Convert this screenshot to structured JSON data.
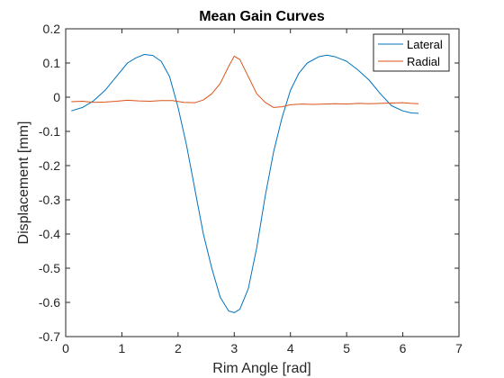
{
  "chart_data": {
    "type": "line",
    "title": "Mean Gain Curves",
    "xlabel": "Rim Angle [rad]",
    "ylabel": "Displacement [mm]",
    "xlim": [
      0,
      7
    ],
    "ylim": [
      -0.7,
      0.2
    ],
    "xticks": [
      "0",
      "1",
      "2",
      "3",
      "4",
      "5",
      "6",
      "7"
    ],
    "yticks": [
      "-0.7",
      "-0.6",
      "-0.5",
      "-0.4",
      "-0.3",
      "-0.2",
      "-0.1",
      "0",
      "0.1",
      "0.2"
    ],
    "grid": false,
    "legend_position": "top-right",
    "series": [
      {
        "name": "Lateral",
        "color": "#0072BD",
        "points": [
          [
            0.1,
            -0.04
          ],
          [
            0.3,
            -0.03
          ],
          [
            0.5,
            -0.01
          ],
          [
            0.7,
            0.02
          ],
          [
            0.9,
            0.06
          ],
          [
            1.1,
            0.1
          ],
          [
            1.25,
            0.115
          ],
          [
            1.4,
            0.125
          ],
          [
            1.55,
            0.122
          ],
          [
            1.7,
            0.105
          ],
          [
            1.85,
            0.06
          ],
          [
            2.0,
            -0.03
          ],
          [
            2.15,
            -0.14
          ],
          [
            2.3,
            -0.27
          ],
          [
            2.45,
            -0.4
          ],
          [
            2.6,
            -0.5
          ],
          [
            2.75,
            -0.585
          ],
          [
            2.9,
            -0.625
          ],
          [
            3.0,
            -0.63
          ],
          [
            3.1,
            -0.62
          ],
          [
            3.25,
            -0.56
          ],
          [
            3.4,
            -0.44
          ],
          [
            3.55,
            -0.29
          ],
          [
            3.7,
            -0.16
          ],
          [
            3.85,
            -0.06
          ],
          [
            4.0,
            0.02
          ],
          [
            4.15,
            0.07
          ],
          [
            4.3,
            0.1
          ],
          [
            4.5,
            0.118
          ],
          [
            4.65,
            0.123
          ],
          [
            4.8,
            0.118
          ],
          [
            5.0,
            0.105
          ],
          [
            5.2,
            0.08
          ],
          [
            5.4,
            0.05
          ],
          [
            5.6,
            0.01
          ],
          [
            5.8,
            -0.025
          ],
          [
            6.0,
            -0.04
          ],
          [
            6.15,
            -0.046
          ],
          [
            6.28,
            -0.047
          ]
        ]
      },
      {
        "name": "Radial",
        "color": "#D95319",
        "points": [
          [
            0.1,
            -0.013
          ],
          [
            0.3,
            -0.012
          ],
          [
            0.5,
            -0.015
          ],
          [
            0.7,
            -0.014
          ],
          [
            0.9,
            -0.012
          ],
          [
            1.1,
            -0.009
          ],
          [
            1.3,
            -0.011
          ],
          [
            1.5,
            -0.012
          ],
          [
            1.7,
            -0.01
          ],
          [
            1.9,
            -0.01
          ],
          [
            2.1,
            -0.015
          ],
          [
            2.3,
            -0.016
          ],
          [
            2.45,
            -0.008
          ],
          [
            2.6,
            0.01
          ],
          [
            2.75,
            0.04
          ],
          [
            2.9,
            0.09
          ],
          [
            3.0,
            0.12
          ],
          [
            3.1,
            0.11
          ],
          [
            3.25,
            0.06
          ],
          [
            3.4,
            0.01
          ],
          [
            3.55,
            -0.015
          ],
          [
            3.7,
            -0.03
          ],
          [
            3.85,
            -0.028
          ],
          [
            4.0,
            -0.022
          ],
          [
            4.2,
            -0.02
          ],
          [
            4.4,
            -0.021
          ],
          [
            4.6,
            -0.02
          ],
          [
            4.8,
            -0.019
          ],
          [
            5.0,
            -0.02
          ],
          [
            5.2,
            -0.018
          ],
          [
            5.4,
            -0.019
          ],
          [
            5.6,
            -0.018
          ],
          [
            5.8,
            -0.017
          ],
          [
            6.0,
            -0.016
          ],
          [
            6.15,
            -0.018
          ],
          [
            6.28,
            -0.019
          ]
        ]
      }
    ]
  }
}
